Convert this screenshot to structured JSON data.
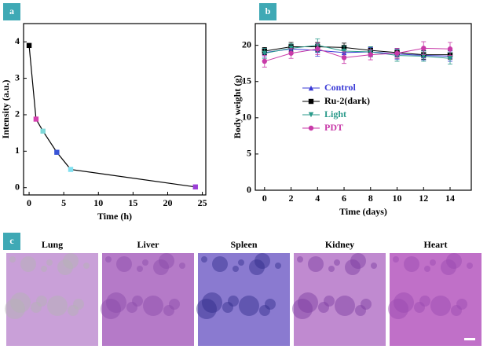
{
  "chart_data": [
    {
      "type": "line",
      "panel_label": "a",
      "xlabel": "Time (h)",
      "ylabel": "Intensity (a.u.)",
      "x": [
        0,
        1,
        2,
        4,
        6,
        24
      ],
      "values": [
        3.9,
        1.88,
        1.55,
        0.97,
        0.5,
        0.02
      ],
      "colors": [
        "#000000",
        "#d63fb0",
        "#7fd8d8",
        "#3a55d6",
        "#7fe0f0",
        "#9b3fd6"
      ],
      "line_color": "#000000",
      "xlim": [
        -0.8,
        25.5
      ],
      "xticks": [
        0,
        5,
        10,
        15,
        20,
        25
      ],
      "ylim": [
        -0.2,
        4.5
      ],
      "yticks": [
        0,
        1,
        2,
        3,
        4
      ]
    },
    {
      "type": "errorline",
      "panel_label": "b",
      "xlabel": "Time (days)",
      "ylabel": "Body weight (g)",
      "x": [
        0,
        2,
        4,
        6,
        8,
        10,
        12,
        14
      ],
      "series": [
        {
          "name": "Control",
          "color": "#3a3ad6",
          "marker": "triangle",
          "values": [
            19.0,
            19.5,
            19.3,
            19.0,
            19.1,
            18.8,
            18.6,
            18.5
          ],
          "errors": [
            0.6,
            0.6,
            0.8,
            0.7,
            0.6,
            0.7,
            0.6,
            0.7
          ]
        },
        {
          "name": "Ru-2(dark)",
          "color": "#000000",
          "marker": "square",
          "values": [
            19.2,
            19.8,
            19.8,
            19.7,
            19.3,
            19.0,
            18.7,
            18.7
          ],
          "errors": [
            0.5,
            0.6,
            0.6,
            0.6,
            0.5,
            0.6,
            0.6,
            0.6
          ]
        },
        {
          "name": "Light",
          "color": "#2a9a8a",
          "marker": "triangle-down",
          "values": [
            18.9,
            19.6,
            20.0,
            19.2,
            19.1,
            18.6,
            18.5,
            18.2
          ],
          "errors": [
            0.7,
            0.6,
            0.9,
            0.7,
            0.7,
            0.8,
            0.7,
            0.8
          ]
        },
        {
          "name": "PDT",
          "color": "#c83aa8",
          "marker": "circle",
          "values": [
            17.8,
            18.9,
            19.5,
            18.3,
            18.7,
            18.9,
            19.6,
            19.5
          ],
          "errors": [
            0.8,
            0.7,
            0.8,
            0.8,
            0.7,
            0.7,
            0.9,
            0.9
          ]
        }
      ],
      "legend": "left",
      "xlim": [
        -0.7,
        15.6
      ],
      "xticks": [
        0,
        2,
        4,
        6,
        8,
        10,
        12,
        14
      ],
      "ylim": [
        0,
        23
      ],
      "yticks": [
        0,
        5,
        10,
        15,
        20
      ]
    }
  ],
  "panel_c": {
    "label": "c",
    "images": [
      {
        "label": "Lung"
      },
      {
        "label": "Liver"
      },
      {
        "label": "Spleen"
      },
      {
        "label": "Kidney"
      },
      {
        "label": "Heart"
      }
    ]
  }
}
